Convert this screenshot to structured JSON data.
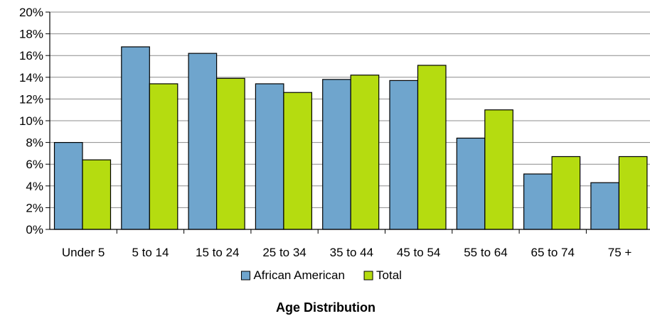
{
  "chart_data": {
    "type": "bar",
    "title": "Age Distribution",
    "categories": [
      "Under 5",
      "5 to 14",
      "15 to 24",
      "25 to 34",
      "35 to 44",
      "45 to 54",
      "55 to 64",
      "65 to 74",
      "75 +"
    ],
    "series": [
      {
        "name": "African American",
        "color": "#6fa5cd",
        "values": [
          8.0,
          16.8,
          16.2,
          13.4,
          13.8,
          13.7,
          8.4,
          5.1,
          4.3
        ]
      },
      {
        "name": "Total",
        "color": "#b5dc10",
        "values": [
          6.4,
          13.4,
          13.9,
          12.6,
          14.2,
          15.1,
          11.0,
          6.7,
          6.7
        ]
      }
    ],
    "ylim": [
      0,
      20
    ],
    "yticks": [
      0,
      2,
      4,
      6,
      8,
      10,
      12,
      14,
      16,
      18,
      20
    ],
    "ytick_labels": [
      "0%",
      "2%",
      "4%",
      "6%",
      "8%",
      "10%",
      "12%",
      "14%",
      "16%",
      "18%",
      "20%"
    ],
    "grid": true,
    "legend_position": "bottom"
  }
}
